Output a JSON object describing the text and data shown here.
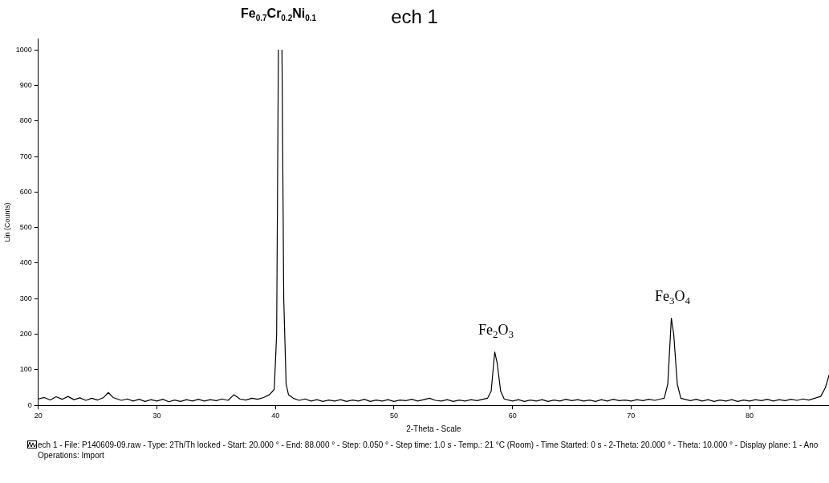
{
  "chart_data": {
    "type": "line",
    "title": "ech 1",
    "xlabel": "2-Theta - Scale",
    "ylabel": "Lin (Counts)",
    "xlim": [
      20,
      86.7
    ],
    "ylim": [
      0,
      1030
    ],
    "xticks": [
      20,
      30,
      40,
      50,
      60,
      70,
      80
    ],
    "yticks": [
      0,
      100,
      200,
      300,
      400,
      500,
      600,
      700,
      800,
      900,
      1000
    ],
    "grid": false,
    "legend": false,
    "marker": "none",
    "line_style": "solid",
    "series": [
      {
        "color": "#000000",
        "x": [
          20,
          20.5,
          21,
          21.5,
          22,
          22.5,
          23,
          23.5,
          24,
          24.5,
          25,
          25.5,
          25.9,
          26.3,
          27,
          27.5,
          28,
          28.5,
          29,
          29.5,
          30,
          30.5,
          31,
          31.5,
          32,
          32.5,
          33,
          33.5,
          34,
          34.5,
          35,
          35.5,
          36,
          36.5,
          37,
          37.5,
          38,
          38.5,
          39,
          39.5,
          39.9,
          40.1,
          40.25,
          40.3,
          40.5,
          40.55,
          40.7,
          40.9,
          41.1,
          41.5,
          42,
          42.5,
          43,
          43.5,
          44,
          44.5,
          45,
          45.5,
          46,
          46.5,
          47,
          47.5,
          48,
          48.5,
          49,
          49.5,
          50,
          50.5,
          51,
          51.5,
          52,
          52.5,
          53,
          53.5,
          54,
          54.5,
          55,
          55.5,
          56,
          56.5,
          57,
          57.5,
          57.9,
          58.2,
          58.5,
          58.7,
          59,
          59.3,
          60,
          60.5,
          61,
          61.5,
          62,
          62.5,
          63,
          63.5,
          64,
          64.5,
          65,
          65.5,
          66,
          66.5,
          67,
          67.5,
          68,
          68.5,
          69,
          69.5,
          70,
          70.5,
          71,
          71.5,
          72,
          72.5,
          72.8,
          73.1,
          73.4,
          73.6,
          73.9,
          74.2,
          75,
          75.5,
          76,
          76.5,
          77,
          77.5,
          78,
          78.5,
          79,
          79.5,
          80,
          80.5,
          81,
          81.5,
          82,
          82.5,
          83,
          83.5,
          84,
          84.5,
          85,
          85.5,
          86,
          86.4,
          86.7
        ],
        "values": [
          18,
          22,
          15,
          24,
          17,
          25,
          16,
          21,
          14,
          20,
          15,
          22,
          36,
          22,
          14,
          18,
          12,
          17,
          11,
          16,
          12,
          17,
          10,
          15,
          11,
          16,
          12,
          17,
          12,
          16,
          13,
          18,
          14,
          30,
          18,
          15,
          20,
          17,
          22,
          30,
          45,
          200,
          1000,
          null,
          null,
          1000,
          300,
          60,
          30,
          20,
          14,
          18,
          12,
          16,
          11,
          15,
          12,
          16,
          11,
          15,
          12,
          17,
          11,
          15,
          12,
          16,
          11,
          15,
          13,
          17,
          12,
          16,
          20,
          14,
          12,
          16,
          11,
          15,
          12,
          16,
          13,
          17,
          20,
          40,
          150,
          120,
          40,
          18,
          12,
          16,
          11,
          15,
          12,
          16,
          11,
          15,
          12,
          17,
          13,
          16,
          12,
          15,
          11,
          16,
          12,
          17,
          13,
          15,
          12,
          16,
          13,
          17,
          14,
          18,
          20,
          60,
          245,
          200,
          60,
          20,
          13,
          17,
          12,
          16,
          11,
          15,
          12,
          16,
          11,
          15,
          12,
          16,
          13,
          17,
          12,
          16,
          13,
          17,
          14,
          18,
          15,
          20,
          25,
          50,
          85
        ]
      }
    ],
    "annotations": [
      "Fe$_{0.7}$Cr$_{0.2}$Ni$_{0.1}$",
      {
        "text": "Fe$_{2}$O$_{3}$",
        "x": 58.6,
        "y": 150
      },
      {
        "text": "Fe$_{3}$O$_{4}$",
        "x": 73.5,
        "y": 245
      },
      "ech 1 - File: P140609-09.raw - Type: 2Th/Th locked - Start: 20.000 ° - End: 88.000 ° - Step: 0.050 ° - Step time: 1.0 s - Temp.: 21 °C (Room) - Time Started: 0 s - 2-Theta: 20.000 ° - Theta: 10.000 ° - Display plane: 1 - Ano",
      "Operations: Import"
    ]
  }
}
